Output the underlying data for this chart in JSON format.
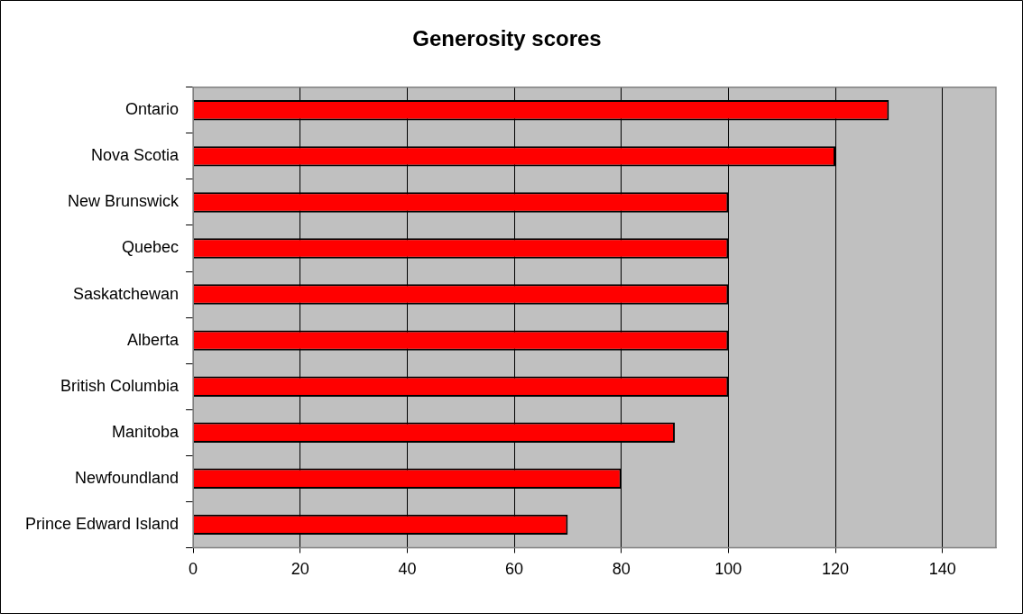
{
  "chart_data": {
    "type": "bar",
    "orientation": "horizontal",
    "title": "Generosity scores",
    "categories": [
      "Ontario",
      "Nova Scotia",
      "New Brunswick",
      "Quebec",
      "Saskatchewan",
      "Alberta",
      "British Columbia",
      "Manitoba",
      "Newfoundland",
      "Prince Edward Island"
    ],
    "values": [
      130,
      120,
      100,
      100,
      100,
      100,
      100,
      90,
      80,
      70
    ],
    "color": "#ff0000",
    "xlim": [
      0,
      150
    ],
    "xticks": [
      0,
      20,
      40,
      60,
      80,
      100,
      120,
      140
    ],
    "grid": "x",
    "legend": false
  }
}
